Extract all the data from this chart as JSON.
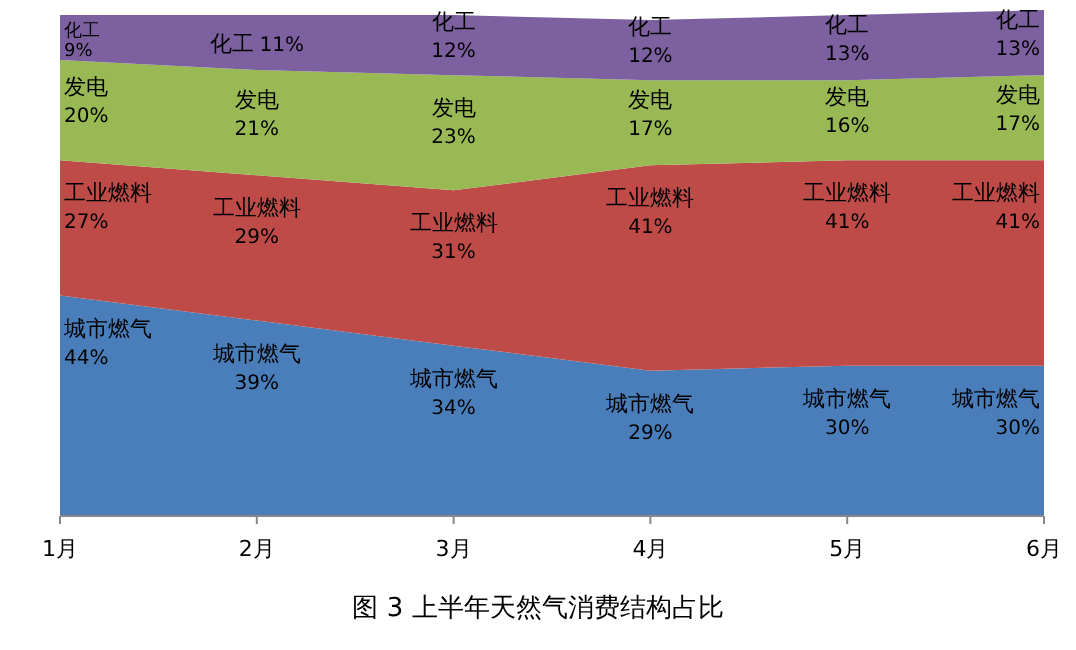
{
  "chart_data": {
    "type": "area",
    "stacked": true,
    "title": "图 3  上半年天然气消费结构占比",
    "categories": [
      "1月",
      "2月",
      "3月",
      "4月",
      "5月",
      "6月"
    ],
    "data_labels": true,
    "legend": false,
    "grid": false,
    "series": [
      {
        "name": "城市燃气",
        "color": "#4a7ebb",
        "values": [
          44,
          39,
          34,
          29,
          30,
          30
        ],
        "value_labels": [
          "44%",
          "39%",
          "34%",
          "29%",
          "30%",
          "30%"
        ]
      },
      {
        "name": "工业燃料",
        "color": "#be4b48",
        "values": [
          27,
          29,
          31,
          41,
          41,
          41
        ],
        "value_labels": [
          "27%",
          "29%",
          "31%",
          "41%",
          "41%",
          "41%"
        ]
      },
      {
        "name": "发电",
        "color": "#98b954",
        "values": [
          20,
          21,
          23,
          17,
          16,
          17
        ],
        "value_labels": [
          "20%",
          "21%",
          "23%",
          "17%",
          "16%",
          "17%"
        ]
      },
      {
        "name": "化工",
        "color": "#7d60a0",
        "values": [
          9,
          11,
          12,
          12,
          13,
          13
        ],
        "value_labels": [
          "9%",
          "11%",
          "12%",
          "12%",
          "13%",
          "13%"
        ]
      }
    ]
  }
}
